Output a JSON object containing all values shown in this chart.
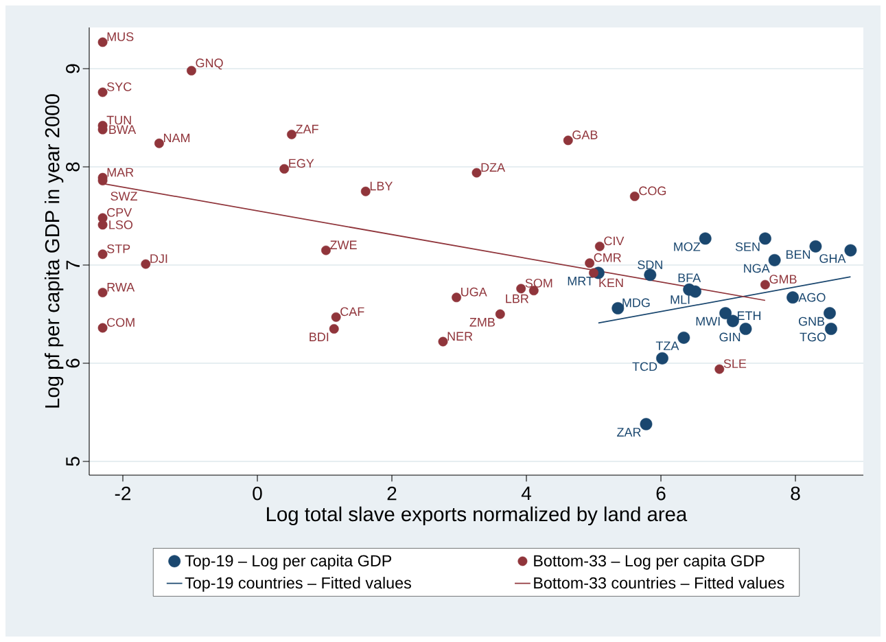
{
  "chart_data": {
    "type": "scatter",
    "xlabel": "Log total slave exports normalized by land area",
    "ylabel": "Log pf per capita GDP in year 2000",
    "xlim": [
      -2.5,
      9.01
    ],
    "ylim": [
      4.86,
      9.42
    ],
    "xticks": [
      -2,
      0,
      2,
      4,
      6,
      8
    ],
    "yticks": [
      5,
      6,
      7,
      8,
      9
    ],
    "grid": "y",
    "legend": "bottom",
    "marker": "circle",
    "series": [
      {
        "name": "Top-19 – Log per capita GDP",
        "type": "scatter",
        "color": "#1a476f",
        "x": [
          6.66,
          7.55,
          7.69,
          8.3,
          8.82,
          7.96,
          8.51,
          8.53,
          7.26,
          7.07,
          6.96,
          6.51,
          6.42,
          5.84,
          5.36,
          5.07,
          6.34,
          6.02,
          5.78
        ],
        "values": [
          7.27,
          7.27,
          7.05,
          7.19,
          7.15,
          6.67,
          6.51,
          6.35,
          6.35,
          6.43,
          6.51,
          6.73,
          6.75,
          6.9,
          6.56,
          6.92,
          6.26,
          6.05,
          5.38
        ]
      },
      {
        "name": "Bottom-33 – Log per capita GDP",
        "type": "scatter",
        "color": "#90353b",
        "x": [
          -2.3,
          -0.98,
          -2.3,
          -2.3,
          -2.3,
          -1.46,
          0.51,
          0.4,
          -2.3,
          -2.3,
          1.61,
          3.26,
          4.62,
          5.61,
          -2.3,
          -2.3,
          -2.3,
          -1.66,
          1.02,
          5.09,
          4.94,
          5.0,
          -2.3,
          2.96,
          3.92,
          4.11,
          3.61,
          1.17,
          1.14,
          -2.3,
          2.76,
          7.55,
          6.87
        ],
        "values": [
          9.27,
          8.98,
          8.76,
          8.42,
          8.38,
          8.24,
          8.33,
          7.98,
          7.89,
          7.86,
          7.75,
          7.94,
          8.27,
          7.7,
          7.48,
          7.41,
          7.11,
          7.01,
          7.15,
          7.19,
          7.02,
          6.92,
          6.72,
          6.67,
          6.76,
          6.74,
          6.5,
          6.47,
          6.35,
          6.36,
          6.22,
          6.8,
          5.94
        ]
      },
      {
        "name": "Top-19 countries – Fitted values",
        "type": "line",
        "color": "#1a476f",
        "marker": "none",
        "x": [
          5.07,
          8.82
        ],
        "values": [
          6.41,
          6.88
        ]
      },
      {
        "name": "Bottom-33 countries – Fitted values",
        "type": "line",
        "color": "#90353b",
        "marker": "none",
        "x": [
          -2.3,
          7.55
        ],
        "values": [
          7.83,
          6.64
        ]
      }
    ],
    "annotations": [
      {
        "text": "MOZ",
        "x": 6.66,
        "y": 7.27
      },
      {
        "text": "SEN",
        "x": 7.55,
        "y": 7.27
      },
      {
        "text": "NGA",
        "x": 7.69,
        "y": 7.05
      },
      {
        "text": "BEN",
        "x": 8.3,
        "y": 7.19
      },
      {
        "text": "GHA",
        "x": 8.82,
        "y": 7.15
      },
      {
        "text": "AGO",
        "x": 7.96,
        "y": 6.67
      },
      {
        "text": "GNB",
        "x": 8.51,
        "y": 6.51
      },
      {
        "text": "TGO",
        "x": 8.53,
        "y": 6.35
      },
      {
        "text": "GIN",
        "x": 7.26,
        "y": 6.35
      },
      {
        "text": "ETH",
        "x": 7.07,
        "y": 6.43
      },
      {
        "text": "MWI",
        "x": 6.96,
        "y": 6.51
      },
      {
        "text": "MLI",
        "x": 6.51,
        "y": 6.73
      },
      {
        "text": "BFA",
        "x": 6.42,
        "y": 6.75
      },
      {
        "text": "SDN",
        "x": 5.84,
        "y": 6.9
      },
      {
        "text": "MDG",
        "x": 5.36,
        "y": 6.56
      },
      {
        "text": "MRT",
        "x": 5.07,
        "y": 6.92
      },
      {
        "text": "TZA",
        "x": 6.34,
        "y": 6.26
      },
      {
        "text": "TCD",
        "x": 6.02,
        "y": 6.05
      },
      {
        "text": "ZAR",
        "x": 5.78,
        "y": 5.38
      },
      {
        "text": "MUS",
        "x": -2.3,
        "y": 9.27
      },
      {
        "text": "GNQ",
        "x": -0.98,
        "y": 8.98
      },
      {
        "text": "SYC",
        "x": -2.3,
        "y": 8.76
      },
      {
        "text": "TUN",
        "x": -2.3,
        "y": 8.42
      },
      {
        "text": "BWA",
        "x": -2.3,
        "y": 8.38
      },
      {
        "text": "NAM",
        "x": -1.46,
        "y": 8.24
      },
      {
        "text": "ZAF",
        "x": 0.51,
        "y": 8.33
      },
      {
        "text": "EGY",
        "x": 0.4,
        "y": 7.98
      },
      {
        "text": "MAR",
        "x": -2.3,
        "y": 7.89
      },
      {
        "text": "SWZ",
        "x": -2.3,
        "y": 7.86
      },
      {
        "text": "LBY",
        "x": 1.61,
        "y": 7.75
      },
      {
        "text": "DZA",
        "x": 3.26,
        "y": 7.94
      },
      {
        "text": "GAB",
        "x": 4.62,
        "y": 8.27
      },
      {
        "text": "COG",
        "x": 5.61,
        "y": 7.7
      },
      {
        "text": "CPV",
        "x": -2.3,
        "y": 7.48
      },
      {
        "text": "LSO",
        "x": -2.3,
        "y": 7.41
      },
      {
        "text": "STP",
        "x": -2.3,
        "y": 7.11
      },
      {
        "text": "DJI",
        "x": -1.66,
        "y": 7.01
      },
      {
        "text": "ZWE",
        "x": 1.02,
        "y": 7.15
      },
      {
        "text": "CIV",
        "x": 5.09,
        "y": 7.19
      },
      {
        "text": "CMR",
        "x": 4.94,
        "y": 7.02
      },
      {
        "text": "KEN",
        "x": 5.0,
        "y": 6.92
      },
      {
        "text": "RWA",
        "x": -2.3,
        "y": 6.72
      },
      {
        "text": "UGA",
        "x": 2.96,
        "y": 6.67
      },
      {
        "text": "SOM",
        "x": 3.92,
        "y": 6.76
      },
      {
        "text": "LBR",
        "x": 4.11,
        "y": 6.74
      },
      {
        "text": "ZMB",
        "x": 3.61,
        "y": 6.5
      },
      {
        "text": "CAF",
        "x": 1.17,
        "y": 6.47
      },
      {
        "text": "BDI",
        "x": 1.14,
        "y": 6.35
      },
      {
        "text": "COM",
        "x": -2.3,
        "y": 6.36
      },
      {
        "text": "NER",
        "x": 2.76,
        "y": 6.22
      },
      {
        "text": "GMB",
        "x": 7.55,
        "y": 6.8
      },
      {
        "text": "SLE",
        "x": 6.87,
        "y": 5.94
      }
    ]
  }
}
